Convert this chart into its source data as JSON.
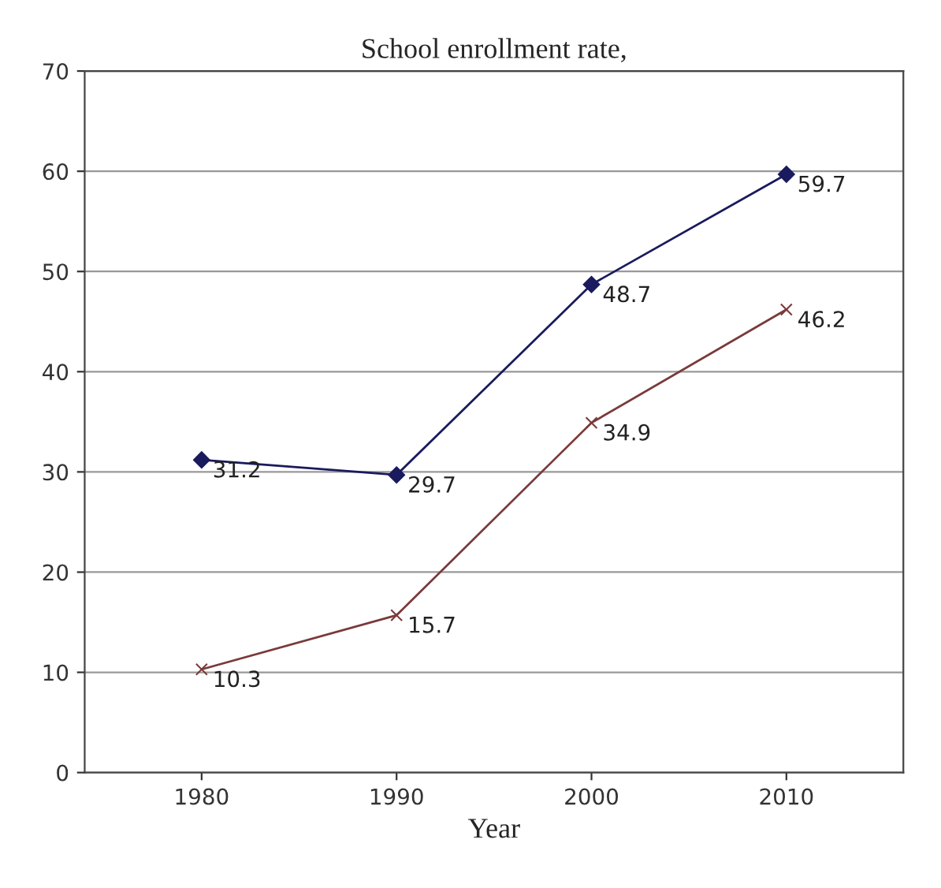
{
  "chart_data": {
    "type": "line",
    "title": "School enrollment rate,",
    "xlabel": "Year",
    "categories": [
      "1980",
      "1990",
      "2000",
      "2010"
    ],
    "series": [
      {
        "color": "#1a1a5e",
        "values": [
          31.2,
          29.7,
          48.7,
          59.7
        ],
        "marker": "diamond"
      },
      {
        "color": "#7a3a3a",
        "values": [
          10.3,
          15.7,
          34.9,
          46.2
        ],
        "marker": "cross"
      }
    ],
    "ylim": [
      0,
      70
    ],
    "yticks": [
      0,
      10,
      20,
      30,
      40,
      50,
      60,
      70
    ],
    "grid": "y",
    "data_labels": true,
    "line_style": "solid"
  }
}
